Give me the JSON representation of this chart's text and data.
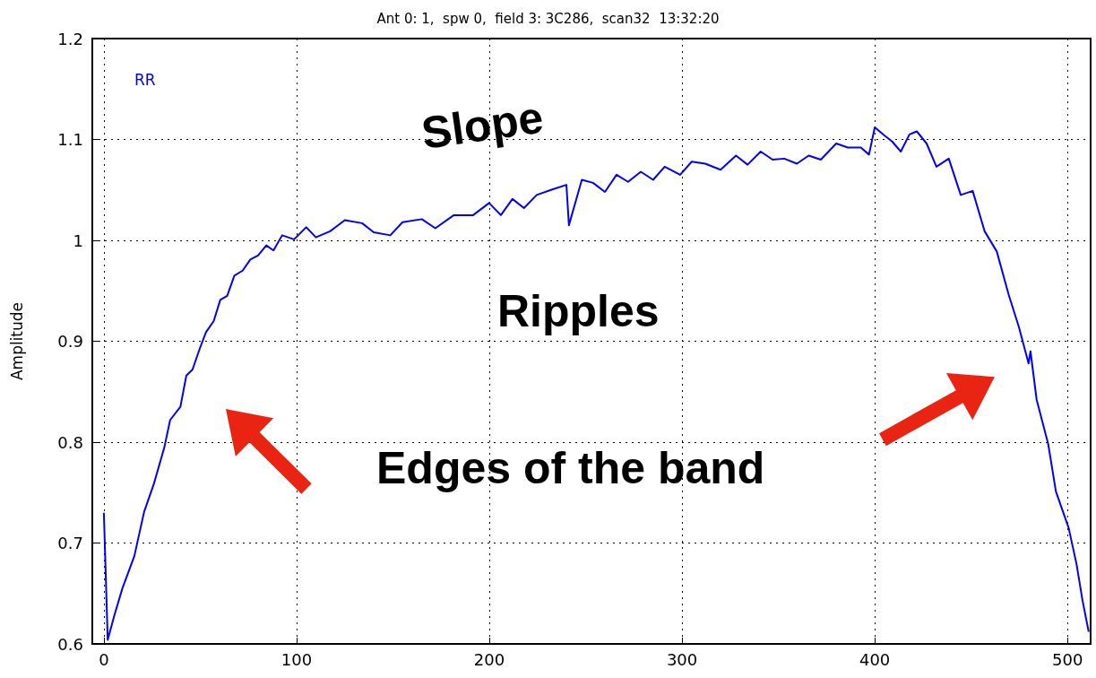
{
  "chart_data": {
    "type": "line",
    "title": "Ant 0: 1,  spw 0,  field 3: 3C286,  scan32  13:32:20",
    "ylabel": "Amplitude",
    "annotations": [
      "Slope",
      "Ripples",
      "Edges of the band"
    ],
    "series": [
      {
        "name": "RR",
        "color": "#0000ff",
        "x": [
          0,
          2,
          5.4,
          9.6,
          15.8,
          20.9,
          26,
          31.4,
          34.4,
          39.7,
          42.8,
          46,
          50,
          53,
          57,
          60.4,
          64,
          67.7,
          72,
          76,
          80,
          84.3,
          88,
          92.5,
          98.7,
          105,
          110,
          117.4,
          125,
          134,
          140,
          148.6,
          155,
          165,
          172,
          181.6,
          191.6,
          199.9,
          206,
          212,
          218,
          224.6,
          232,
          240,
          241.3,
          248,
          253.8,
          260,
          266,
          272,
          278.6,
          285,
          291,
          299,
          305,
          312,
          320,
          328,
          334,
          340.8,
          347,
          353,
          359.6,
          365.7,
          372,
          380,
          386,
          392.8,
          397,
          400,
          405,
          409,
          413.5,
          418,
          421.8,
          426.9,
          432,
          438.4,
          444.6,
          450.8,
          457,
          463.3,
          469.5,
          474.8,
          479.8,
          480.8,
          484,
          490,
          494,
          500.6,
          504.7,
          507.8,
          511
        ],
        "values": [
          0.73,
          0.604,
          0.628,
          0.655,
          0.687,
          0.731,
          0.759,
          0.795,
          0.822,
          0.835,
          0.866,
          0.872,
          0.894,
          0.909,
          0.92,
          0.941,
          0.945,
          0.965,
          0.97,
          0.981,
          0.985,
          0.995,
          0.99,
          1.005,
          1.001,
          1.013,
          1.003,
          1.009,
          1.02,
          1.017,
          1.008,
          1.005,
          1.018,
          1.021,
          1.012,
          1.025,
          1.025,
          1.037,
          1.025,
          1.041,
          1.032,
          1.045,
          1.05,
          1.055,
          1.015,
          1.06,
          1.057,
          1.048,
          1.065,
          1.058,
          1.068,
          1.06,
          1.073,
          1.065,
          1.078,
          1.076,
          1.07,
          1.084,
          1.075,
          1.088,
          1.08,
          1.081,
          1.076,
          1.084,
          1.08,
          1.096,
          1.092,
          1.092,
          1.085,
          1.112,
          1.104,
          1.098,
          1.088,
          1.105,
          1.108,
          1.096,
          1.073,
          1.081,
          1.045,
          1.049,
          1.009,
          0.989,
          0.946,
          0.914,
          0.878,
          0.89,
          0.842,
          0.798,
          0.751,
          0.715,
          0.679,
          0.643,
          0.612
        ]
      }
    ],
    "xlim": [
      -6,
      512
    ],
    "xticks": [
      0,
      100,
      200,
      300,
      400,
      500
    ],
    "ylim": [
      0.6,
      1.2
    ],
    "yticks": [
      0.6,
      0.7,
      0.8,
      0.9,
      1.0,
      1.1,
      1.2
    ],
    "grid": true,
    "legend": "top left"
  }
}
